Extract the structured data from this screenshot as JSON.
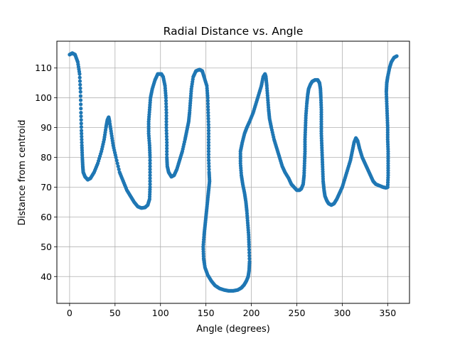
{
  "chart_data": {
    "type": "scatter",
    "title": "Radial Distance vs. Angle",
    "xlabel": "Angle (degrees)",
    "ylabel": "Distance from centroid",
    "xlim": [
      -14,
      374
    ],
    "ylim": [
      31,
      119
    ],
    "xticks": [
      0,
      50,
      100,
      150,
      200,
      250,
      300,
      350
    ],
    "yticks": [
      40,
      50,
      60,
      70,
      80,
      90,
      100,
      110
    ],
    "grid": true,
    "legend": "none",
    "series": [
      {
        "color": "#1f77b4",
        "points": [
          [
            0,
            114.5
          ],
          [
            3,
            115
          ],
          [
            6,
            114.5
          ],
          [
            9,
            112
          ],
          [
            11,
            108
          ],
          [
            12,
            102
          ],
          [
            12.5,
            95
          ],
          [
            13,
            89
          ],
          [
            13.5,
            84
          ],
          [
            14,
            80
          ],
          [
            14.5,
            77
          ],
          [
            15,
            75
          ],
          [
            17,
            73.5
          ],
          [
            20,
            72.5
          ],
          [
            23,
            73
          ],
          [
            27,
            75
          ],
          [
            31,
            78
          ],
          [
            35,
            82
          ],
          [
            38,
            86
          ],
          [
            40,
            90
          ],
          [
            41.5,
            92.5
          ],
          [
            43,
            93.5
          ],
          [
            44,
            92
          ],
          [
            46,
            88
          ],
          [
            48,
            84
          ],
          [
            51,
            80
          ],
          [
            55,
            75
          ],
          [
            59,
            72
          ],
          [
            63,
            69
          ],
          [
            67,
            67
          ],
          [
            71,
            65
          ],
          [
            75,
            63.5
          ],
          [
            79,
            63
          ],
          [
            83,
            63.2
          ],
          [
            86,
            64
          ],
          [
            88,
            66
          ],
          [
            88.5,
            70
          ],
          [
            88.5,
            75
          ],
          [
            88.5,
            80
          ],
          [
            88,
            84
          ],
          [
            87,
            88
          ],
          [
            87,
            92
          ],
          [
            88,
            96
          ],
          [
            89,
            100
          ],
          [
            91,
            103
          ],
          [
            94,
            106
          ],
          [
            97,
            108
          ],
          [
            101,
            108
          ],
          [
            103,
            107
          ],
          [
            105,
            104
          ],
          [
            106,
            100
          ],
          [
            106.5,
            95
          ],
          [
            106.5,
            90
          ],
          [
            107,
            85
          ],
          [
            107,
            80
          ],
          [
            107.5,
            77
          ],
          [
            109,
            75
          ],
          [
            112,
            73.5
          ],
          [
            115,
            74
          ],
          [
            118,
            76
          ],
          [
            121,
            79
          ],
          [
            124,
            82
          ],
          [
            127,
            86
          ],
          [
            129,
            89
          ],
          [
            131,
            92
          ],
          [
            132,
            95
          ],
          [
            133,
            99
          ],
          [
            134,
            103
          ],
          [
            136,
            107
          ],
          [
            139,
            109
          ],
          [
            143,
            109.5
          ],
          [
            146,
            109
          ],
          [
            148,
            107
          ],
          [
            151,
            104
          ],
          [
            152,
            100
          ],
          [
            152.5,
            95
          ],
          [
            153,
            90
          ],
          [
            153,
            85
          ],
          [
            153,
            80
          ],
          [
            153.5,
            75
          ],
          [
            154,
            72
          ],
          [
            153,
            69
          ],
          [
            152,
            66
          ],
          [
            151,
            63
          ],
          [
            150,
            60
          ],
          [
            149,
            57
          ],
          [
            148,
            54
          ],
          [
            147,
            50
          ],
          [
            147.5,
            46
          ],
          [
            149,
            43
          ],
          [
            152,
            40.5
          ],
          [
            156,
            38.5
          ],
          [
            160,
            37
          ],
          [
            165,
            36
          ],
          [
            170,
            35.5
          ],
          [
            175,
            35.2
          ],
          [
            180,
            35.2
          ],
          [
            185,
            35.5
          ],
          [
            189,
            36.2
          ],
          [
            192,
            37.2
          ],
          [
            194.5,
            38.5
          ],
          [
            196.5,
            40
          ],
          [
            197.5,
            42
          ],
          [
            198,
            45
          ],
          [
            197.5,
            50
          ],
          [
            197,
            54
          ],
          [
            196,
            58
          ],
          [
            195,
            62
          ],
          [
            194,
            65
          ],
          [
            192.5,
            68
          ],
          [
            190.5,
            71
          ],
          [
            189,
            74
          ],
          [
            188,
            78
          ],
          [
            188,
            82
          ],
          [
            190,
            85
          ],
          [
            192.5,
            88
          ],
          [
            195,
            90
          ],
          [
            198,
            92
          ],
          [
            202,
            95
          ],
          [
            205,
            98
          ],
          [
            208,
            101
          ],
          [
            211,
            104
          ],
          [
            213,
            107
          ],
          [
            215,
            108
          ],
          [
            216,
            107
          ],
          [
            217,
            104
          ],
          [
            218,
            100
          ],
          [
            219,
            96
          ],
          [
            220,
            93
          ],
          [
            222,
            90
          ],
          [
            225,
            86
          ],
          [
            228,
            83
          ],
          [
            231,
            80
          ],
          [
            234,
            77
          ],
          [
            237,
            75
          ],
          [
            241,
            73
          ],
          [
            244,
            71
          ],
          [
            247,
            70
          ],
          [
            250,
            69
          ],
          [
            253,
            69
          ],
          [
            255,
            69.5
          ],
          [
            257,
            71
          ],
          [
            258,
            74
          ],
          [
            258.5,
            78
          ],
          [
            259,
            82
          ],
          [
            259,
            86
          ],
          [
            259.5,
            90
          ],
          [
            260,
            94
          ],
          [
            261,
            98
          ],
          [
            262,
            101
          ],
          [
            263,
            103
          ],
          [
            265,
            104.5
          ],
          [
            267,
            105.5
          ],
          [
            270,
            106
          ],
          [
            273,
            106
          ],
          [
            275,
            105
          ],
          [
            276,
            103
          ],
          [
            276.5,
            100
          ],
          [
            277,
            96
          ],
          [
            277,
            92
          ],
          [
            277,
            88
          ],
          [
            277.5,
            84
          ],
          [
            278,
            80
          ],
          [
            278.5,
            76
          ],
          [
            279,
            72
          ],
          [
            280,
            69
          ],
          [
            281,
            67
          ],
          [
            283,
            65.5
          ],
          [
            285,
            64.5
          ],
          [
            288,
            64
          ],
          [
            291,
            64.5
          ],
          [
            294,
            66
          ],
          [
            297,
            68
          ],
          [
            300,
            70
          ],
          [
            303,
            73
          ],
          [
            306,
            76
          ],
          [
            309,
            79
          ],
          [
            311,
            82
          ],
          [
            313,
            85
          ],
          [
            315,
            86.5
          ],
          [
            317,
            85.5
          ],
          [
            319,
            83
          ],
          [
            322,
            80
          ],
          [
            325,
            78
          ],
          [
            328,
            76
          ],
          [
            331,
            74
          ],
          [
            334,
            72
          ],
          [
            337,
            71
          ],
          [
            341,
            70.5
          ],
          [
            345,
            70
          ],
          [
            348,
            69.8
          ],
          [
            350,
            70
          ],
          [
            350.5,
            74
          ],
          [
            350.5,
            78
          ],
          [
            350.5,
            82
          ],
          [
            350,
            86
          ],
          [
            350,
            90
          ],
          [
            349.5,
            94
          ],
          [
            349,
            98
          ],
          [
            348.5,
            102
          ],
          [
            349,
            105
          ],
          [
            350,
            107
          ],
          [
            352,
            110
          ],
          [
            354,
            112
          ],
          [
            357,
            113.5
          ],
          [
            360,
            114
          ]
        ]
      }
    ]
  }
}
